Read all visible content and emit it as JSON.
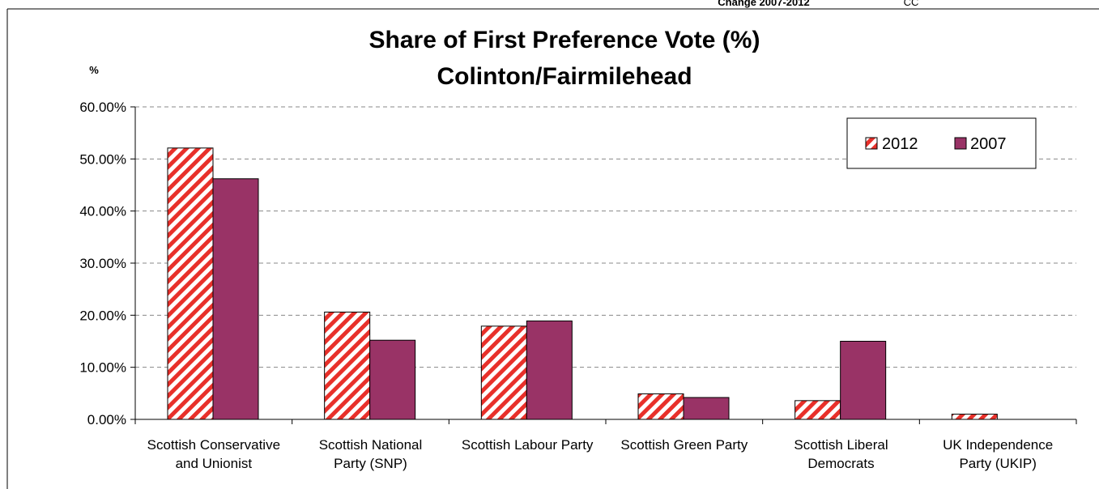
{
  "header_cutoff": {
    "label": "Change 2007-2012",
    "value": "CC"
  },
  "chart_data": {
    "type": "bar",
    "title_lines": [
      "Share of First Preference Vote (%)",
      "Colinton/Fairmilehead"
    ],
    "ylabel": "%",
    "xlabel": "",
    "ylim": [
      0,
      60
    ],
    "ytick_values": [
      0,
      10,
      20,
      30,
      40,
      50,
      60
    ],
    "ytick_labels": [
      "0.00%",
      "10.00%",
      "20.00%",
      "30.00%",
      "40.00%",
      "50.00%",
      "60.00%"
    ],
    "grid": true,
    "legend_position": "top-right",
    "categories": [
      [
        "Scottish Conservative",
        "and Unionist"
      ],
      [
        "Scottish National",
        "Party (SNP)"
      ],
      [
        "Scottish Labour Party"
      ],
      [
        "Scottish Green Party"
      ],
      [
        "Scottish Liberal",
        "Democrats"
      ],
      [
        "UK Independence",
        "Party (UKIP)"
      ]
    ],
    "series": [
      {
        "name": "2012",
        "values": [
          52.1,
          20.6,
          17.9,
          4.9,
          3.6,
          1.0
        ],
        "color": "#e8302a",
        "pattern": "hatched"
      },
      {
        "name": "2007",
        "values": [
          46.2,
          15.2,
          18.9,
          4.2,
          15.0,
          null
        ],
        "color": "#993366",
        "pattern": "solid"
      }
    ]
  }
}
